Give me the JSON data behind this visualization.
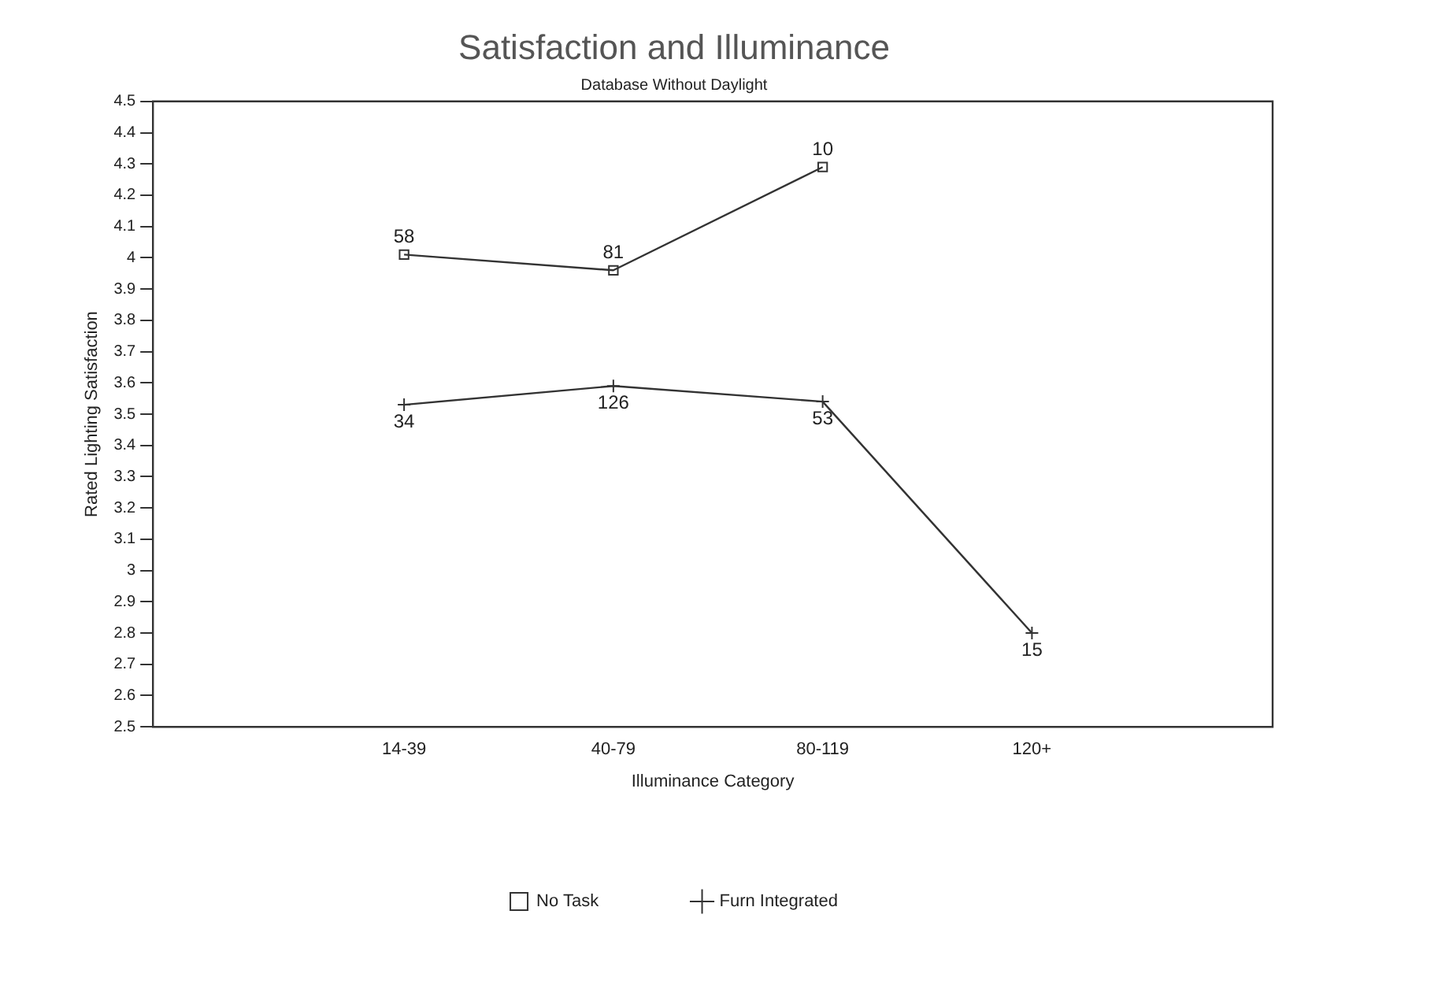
{
  "chart_data": {
    "type": "line",
    "title": "Satisfaction and Illuminance",
    "subtitle": "Database Without Daylight",
    "xlabel": "Illuminance Category",
    "ylabel": "Rated Lighting Satisfaction",
    "categories": [
      "14-39",
      "40-79",
      "80-119",
      "120+"
    ],
    "series": [
      {
        "name": "No Task",
        "color": "#333333",
        "marker": "square",
        "values": [
          4.01,
          3.96,
          4.29,
          null
        ]
      },
      {
        "name": "Furn Integrated",
        "color": "#333333",
        "marker": "cross",
        "values": [
          3.53,
          3.59,
          3.54,
          2.8
        ]
      }
    ],
    "ylim": [
      2.5,
      4.5
    ],
    "yticks": [
      2.5,
      2.6,
      2.7,
      2.8,
      2.9,
      3,
      3.1,
      3.2,
      3.3,
      3.4,
      3.5,
      3.6,
      3.7,
      3.8,
      3.9,
      4,
      4.1,
      4.2,
      4.3,
      4.4,
      4.5
    ],
    "annotations": [
      {
        "text": "58",
        "x": "14-39",
        "y": 4.01
      },
      {
        "text": "81",
        "x": "40-79",
        "y": 3.96
      },
      {
        "text": "10",
        "x": "80-119",
        "y": 4.29
      },
      {
        "text": "34",
        "x": "14-39",
        "y": 3.53
      },
      {
        "text": "126",
        "x": "40-79",
        "y": 3.59
      },
      {
        "text": "53",
        "x": "80-119",
        "y": 3.54
      },
      {
        "text": "15",
        "x": "120+",
        "y": 2.8
      }
    ],
    "grid": false,
    "legend": "bottom"
  }
}
